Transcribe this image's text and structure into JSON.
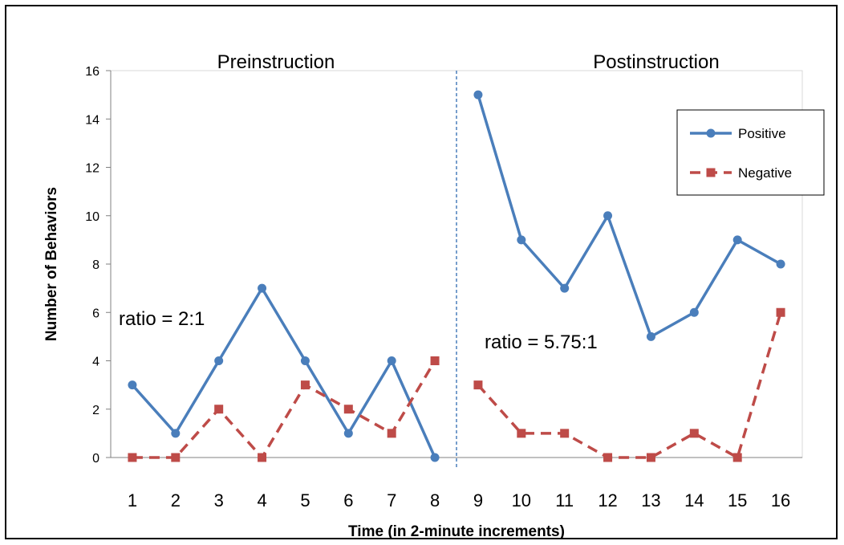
{
  "chart_data": {
    "type": "line",
    "title": "",
    "xlabel": "Time (in 2-minute increments)",
    "ylabel": "Number of Behaviors",
    "ylim": [
      0,
      16
    ],
    "yticks": [
      "0",
      "2",
      "4",
      "6",
      "8",
      "10",
      "12",
      "14",
      "16"
    ],
    "categories": [
      "1",
      "2",
      "3",
      "4",
      "5",
      "6",
      "7",
      "8",
      "9",
      "10",
      "11",
      "12",
      "13",
      "14",
      "15",
      "16"
    ],
    "phase_divider_between": [
      "8",
      "9"
    ],
    "phases": [
      {
        "label": "Preinstruction",
        "annotation": "ratio = 2:1"
      },
      {
        "label": "Postinstruction",
        "annotation": "ratio = 5.75:1"
      }
    ],
    "series": [
      {
        "name": "Positive",
        "color": "#4a7ebb",
        "marker": "circle",
        "line": "solid",
        "segments": [
          [
            3,
            1,
            4,
            7,
            4,
            1,
            4,
            0
          ],
          [
            15,
            9,
            7,
            10,
            5,
            6,
            9,
            8
          ]
        ]
      },
      {
        "name": "Negative",
        "color": "#be4b48",
        "marker": "square",
        "line": "dashed",
        "segments": [
          [
            0,
            0,
            2,
            0,
            3,
            2,
            1,
            4
          ],
          [
            3,
            1,
            1,
            0,
            0,
            1,
            0,
            6
          ]
        ]
      }
    ],
    "legend": "top-right",
    "grid": false
  }
}
